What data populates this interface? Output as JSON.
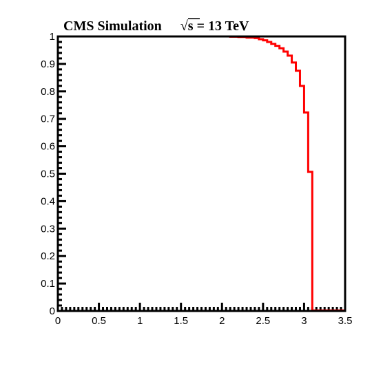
{
  "title": {
    "experiment": "CMS Simulation",
    "energy_prefix": "√s",
    "energy_suffix": " = 13 TeV"
  },
  "chart_data": {
    "type": "line",
    "title": "CMS Simulation √s = 13 TeV",
    "xlabel": "",
    "ylabel": "",
    "xlim": [
      0,
      3.5
    ],
    "ylim": [
      0,
      1
    ],
    "grid": false,
    "legend": "none",
    "x_ticks": [
      "0",
      "0.5",
      "1",
      "1.5",
      "2",
      "2.5",
      "3",
      "3.5"
    ],
    "y_ticks": [
      "0",
      "0.1",
      "0.2",
      "0.3",
      "0.4",
      "0.5",
      "0.6",
      "0.7",
      "0.8",
      "0.9",
      "1"
    ],
    "series": [
      {
        "color": "#ff0000",
        "style": "step",
        "bin_edges": [
          0,
          2.0,
          2.1,
          2.2,
          2.3,
          2.4,
          2.45,
          2.5,
          2.55,
          2.6,
          2.65,
          2.7,
          2.75,
          2.8,
          2.85,
          2.9,
          2.95,
          3.0,
          3.05,
          3.1,
          3.5
        ],
        "values": [
          1.0,
          1.0,
          0.999,
          0.998,
          0.996,
          0.994,
          0.99,
          0.986,
          0.98,
          0.973,
          0.966,
          0.957,
          0.945,
          0.93,
          0.905,
          0.875,
          0.82,
          0.723,
          0.507,
          0.002
        ]
      }
    ]
  }
}
